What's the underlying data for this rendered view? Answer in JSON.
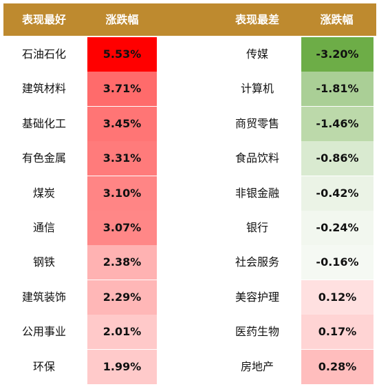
{
  "headers": {
    "best_title": "表现最好",
    "best_change": "涨跌幅",
    "worst_title": "表现最差",
    "worst_change": "涨跌幅"
  },
  "colors": {
    "header_bg": "#BE8A2F",
    "header_text": "#FFFFFF"
  },
  "best": [
    {
      "name": "石油石化",
      "change": "5.53%",
      "color": "#FF0000"
    },
    {
      "name": "建筑材料",
      "change": "3.71%",
      "color": "#FF6B6B"
    },
    {
      "name": "基础化工",
      "change": "3.45%",
      "color": "#FF7575"
    },
    {
      "name": "有色金属",
      "change": "3.31%",
      "color": "#FF7B7B"
    },
    {
      "name": "煤炭",
      "change": "3.10%",
      "color": "#FF8585"
    },
    {
      "name": "通信",
      "change": "3.07%",
      "color": "#FF8787"
    },
    {
      "name": "钢铁",
      "change": "2.38%",
      "color": "#FFB2B2"
    },
    {
      "name": "建筑装饰",
      "change": "2.29%",
      "color": "#FFB7B7"
    },
    {
      "name": "公用事业",
      "change": "2.01%",
      "color": "#FFC9C9"
    },
    {
      "name": "环保",
      "change": "1.99%",
      "color": "#FFCACA"
    }
  ],
  "worst": [
    {
      "name": "传媒",
      "change": "-3.20%",
      "color": "#6DAD47"
    },
    {
      "name": "计算机",
      "change": "-1.81%",
      "color": "#AACF96"
    },
    {
      "name": "商贸零售",
      "change": "-1.46%",
      "color": "#BCD9AA"
    },
    {
      "name": "食品饮料",
      "change": "-0.86%",
      "color": "#D9EAD0"
    },
    {
      "name": "非银金融",
      "change": "-0.42%",
      "color": "#EBF3E6"
    },
    {
      "name": "银行",
      "change": "-0.24%",
      "color": "#F2F7EF"
    },
    {
      "name": "社会服务",
      "change": "-0.16%",
      "color": "#F5F9F3"
    },
    {
      "name": "美容护理",
      "change": "0.12%",
      "color": "#FFE0E0"
    },
    {
      "name": "医药生物",
      "change": "0.17%",
      "color": "#FFD4D4"
    },
    {
      "name": "房地产",
      "change": "0.28%",
      "color": "#FFBDBD"
    }
  ]
}
